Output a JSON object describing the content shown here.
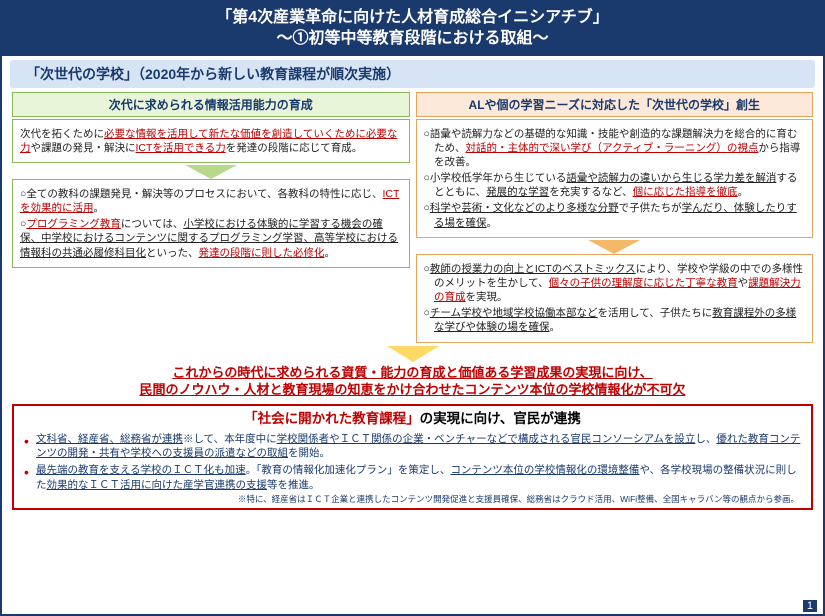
{
  "title": {
    "line1": "「第4次産業革命に向けた人材育成総合イニシアチブ」",
    "line2": "～①初等中等教育段階における取組～"
  },
  "subtitle": "「次世代の学校」（2020年から新しい教育課程が順次実施）",
  "left": {
    "header": "次代に求められる情報活用能力の育成",
    "box1_plain1": "次代を拓くために",
    "box1_red1": "必要な情報を活用して新たな価値を創造していくために必要な力",
    "box1_plain2": "や課題の発見・解決に",
    "box1_red2": "ICTを活用できる力",
    "box1_plain3": "を発達の段階に応じて育成。",
    "box2_p1_a": "○全ての教科の課題発見・解決等のプロセスにおいて、各教科の特性に応じ、",
    "box2_p1_b": "ICTを効果的に活用",
    "box2_p1_c": "。",
    "box2_p2_a": "○",
    "box2_p2_b": "プログラミング教育",
    "box2_p2_c": "については、",
    "box2_p2_d": "小学校における体験的に学習する機会の確保、中学校におけるコンテンツに関するプログラミング学習、高等学校における情報科の共通必履修科目化",
    "box2_p2_e": "といった、",
    "box2_p2_f": "発達の段階に則した必修化",
    "box2_p2_g": "。"
  },
  "right": {
    "header": "ALや個の学習ニーズに対応した「次世代の学校」創生",
    "b1_p1_a": "○語彙や読解力などの基礎的な知識・技能や創造的な課題解決力を総合的に育むため、",
    "b1_p1_b": "対話的・主体的で深い学び（アクティブ・ラーニング）の視点",
    "b1_p1_c": "から指導を改善。",
    "b1_p2_a": "○小学校低学年から生じている",
    "b1_p2_b": "語彙や読解力の違いから生じる学力差を解消",
    "b1_p2_c": "するとともに、",
    "b1_p2_d": "発展的な学習",
    "b1_p2_e": "を充実するなど、",
    "b1_p2_f": "個に応じた指導を徹底",
    "b1_p2_g": "。",
    "b1_p3_a": "○",
    "b1_p3_b": "科学や芸術・文化などのより多様な分野",
    "b1_p3_c": "で子供たちが",
    "b1_p3_d": "学んだり、体験したりする場を確保",
    "b1_p3_e": "。",
    "b2_p1_a": "○",
    "b2_p1_b": "教師の授業力の向上とICTのベストミックス",
    "b2_p1_c": "により、学校や学級の中での多様性のメリットを生かして、",
    "b2_p1_d": "個々の子供の理解度に応じた丁寧な教育",
    "b2_p1_e": "や",
    "b2_p1_f": "課題解決力の育成",
    "b2_p1_g": "を実現。",
    "b2_p2_a": "○",
    "b2_p2_b": "チーム学校や地域学校協働本部など",
    "b2_p2_c": "を活用して、子供たちに",
    "b2_p2_d": "教育課程外の多様な学びや体験の場を確保",
    "b2_p2_e": "。"
  },
  "middle": {
    "line1": "これからの時代に求められる資質・能力の育成と価値ある学習成果の実現に向け、",
    "line2": "民間のノウハウ・人材と教育現場の知恵をかけ合わせたコンテンツ本位の学校情報化が不可欠"
  },
  "bottom": {
    "title_red": "「社会に開かれた教育課程」",
    "title_black": "の実現に向け、官民が連携",
    "li1_a": "文科省、経産省、総務省が連携",
    "li1_b": "※して、本年度中に",
    "li1_c": "学校関係者やＩＣＴ関係の企業・ベンチャーなどで構成される官民コンソーシアムを設立",
    "li1_d": "し、",
    "li1_e": "優れた教育コンテンツの開発・共有や学校への支援員の派遣などの取組",
    "li1_f": "を開始。",
    "li2_a": "最先端の教育を支える学校のＩＣＴ化も加速",
    "li2_b": "。「教育の情報化加速化プラン」を策定し、",
    "li2_c": "コンテンツ本位の学校情報化の環境整備",
    "li2_d": "や、各学校現場の整備状況に則した",
    "li2_e": "効果的なＩＣＴ活用に向けた産学官連携の支援",
    "li2_f": "等を推進。",
    "footnote": "※特に、経産省はＩＣＴ企業と連携したコンテンツ開発促進と支援員確保、総務省はクラウド活用、WiFi整備、全国キャラバン等の観点から参画。"
  },
  "pagenum": "1"
}
